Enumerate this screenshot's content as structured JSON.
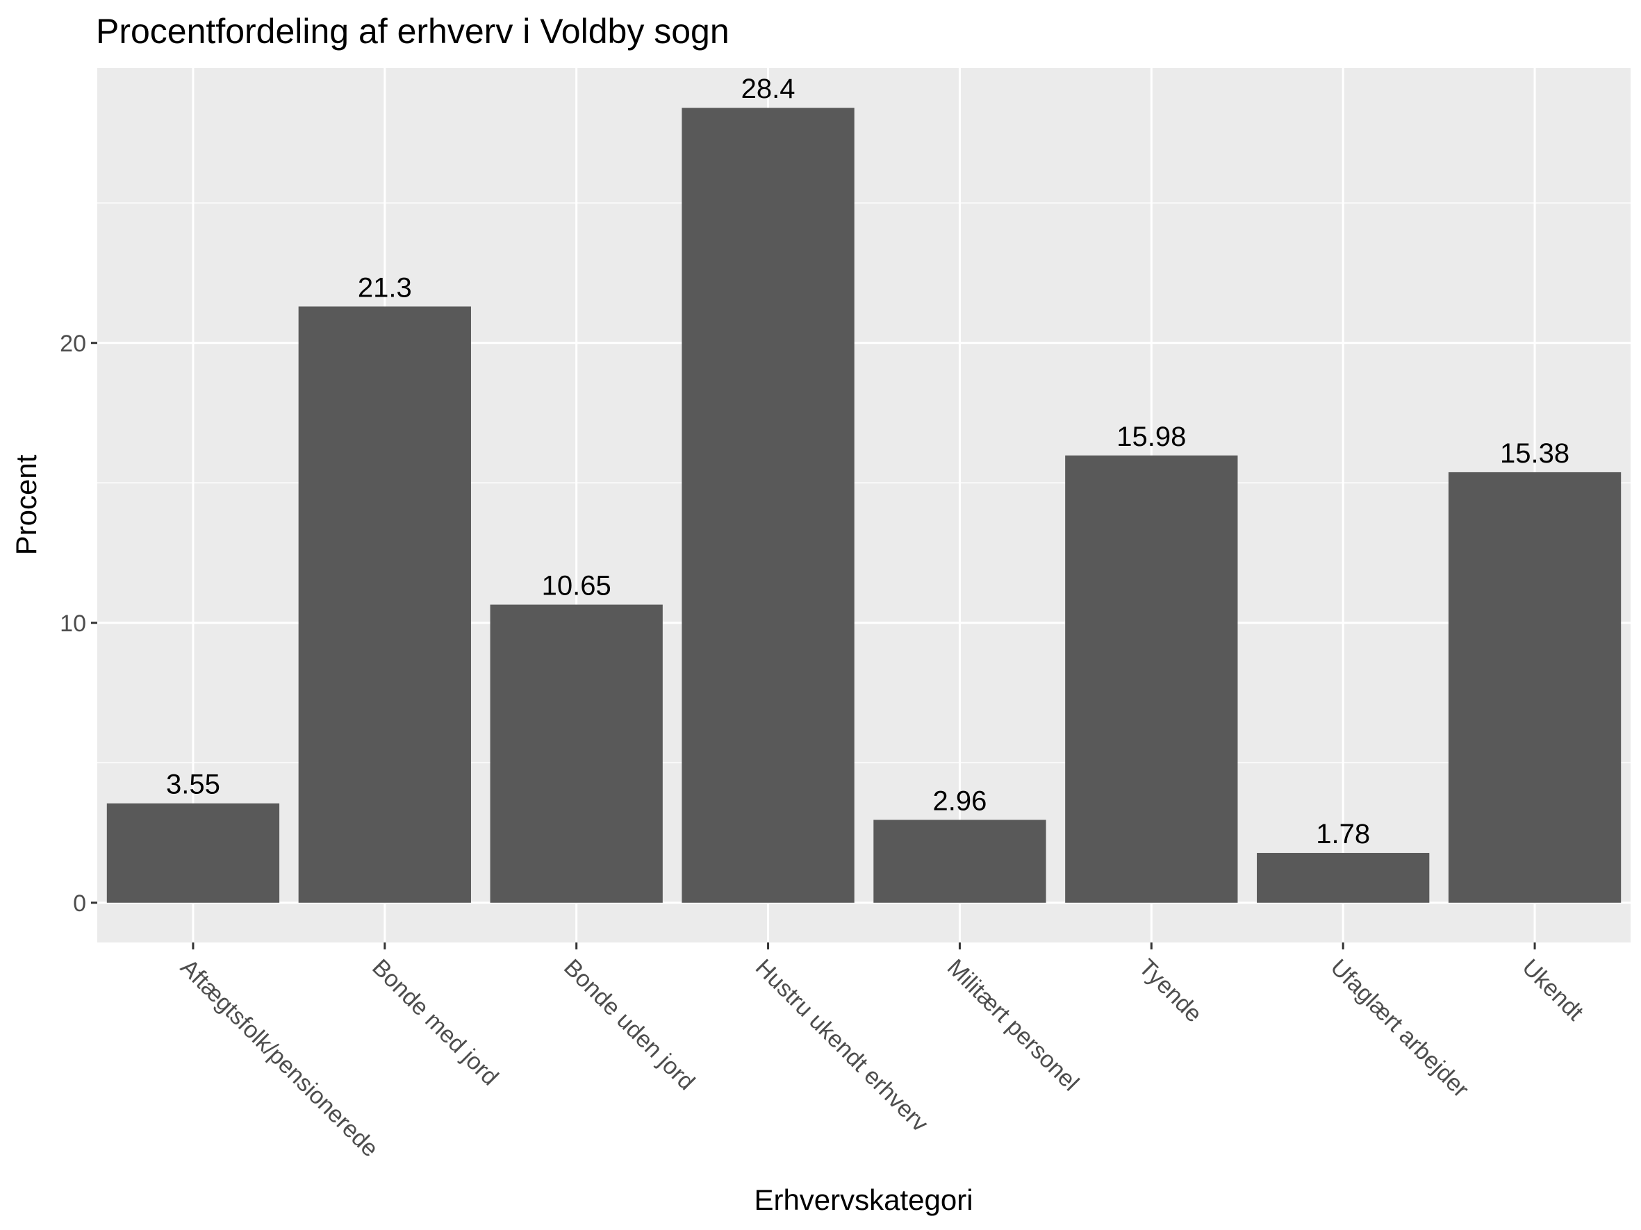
{
  "chart_data": {
    "type": "bar",
    "title": "Procentfordeling af erhverv i Voldby sogn",
    "xlabel": "Erhvervskategori",
    "ylabel": "Procent",
    "categories": [
      "Aftægtsfolk/pensionerede",
      "Bonde med jord",
      "Bonde uden jord",
      "Hustru ukendt erhverv",
      "Militært personel",
      "Tyende",
      "Ufaglært arbejder",
      "Ukendt"
    ],
    "values": [
      3.55,
      21.3,
      10.65,
      28.4,
      2.96,
      15.98,
      1.78,
      15.38
    ],
    "value_labels": [
      "3.55",
      "21.3",
      "10.65",
      "28.4",
      "2.96",
      "15.98",
      "1.78",
      "15.38"
    ],
    "ylim": [
      -1.42,
      29.82
    ],
    "yticks": [
      0,
      10,
      20
    ],
    "ytick_labels": [
      "0",
      "10",
      "20"
    ],
    "grid": true,
    "colors": {
      "bar": "#595959",
      "panel": "#ebebeb",
      "grid": "#ffffff",
      "tick_text": "#4d4d4d"
    }
  }
}
